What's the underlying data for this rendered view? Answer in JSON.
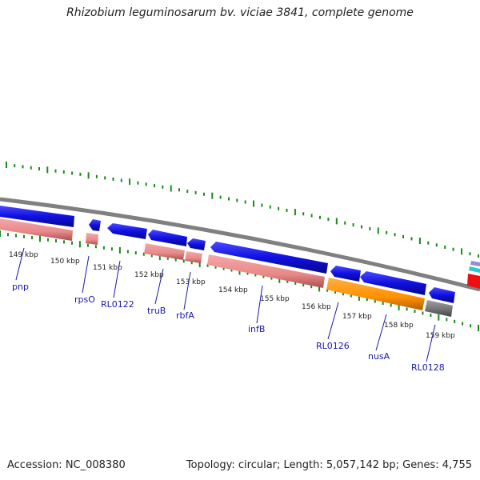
{
  "title": "Rhizobium leguminosarum bv. viciae 3841, complete genome",
  "footer": {
    "accession": "Accession: NC_008380",
    "topology": "Topology: circular; Length: 5,057,142 bp; Genes: 4,755"
  },
  "ticks": [
    "149 kbp",
    "150 kbp",
    "151 kbp",
    "152 kbp",
    "153 kbp",
    "154 kbp",
    "155 kbp",
    "156 kbp",
    "157 kbp",
    "158 kbp",
    "159 kbp"
  ],
  "genes": [
    "pnp",
    "rpsO",
    "RL0122",
    "truB",
    "rbfA",
    "infB",
    "RL0126",
    "nusA",
    "RL0128"
  ],
  "colors": {
    "cds_blue": "#1010e0",
    "feature_pink": "#e88888",
    "orange": "#ff9000",
    "gray": "#707070",
    "backbone": "#808080",
    "tick_green": "#1a8a1a",
    "label_blue": "#1a1aa8"
  }
}
